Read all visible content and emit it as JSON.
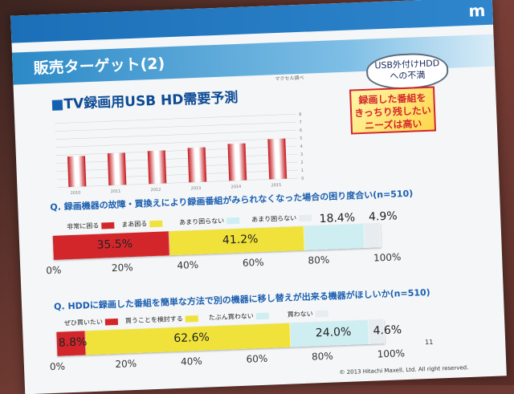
{
  "header": {
    "brand": "m"
  },
  "slide": {
    "title": "販売ターゲット(2)",
    "page": "11",
    "copyright": "© 2013 Hitachi Maxell, Ltd. All right reserved."
  },
  "bubble": {
    "line1": "USB外付けHDD",
    "line2": "への不満"
  },
  "callout": {
    "line1": "録画した番組を",
    "line2": "きっちり残したい",
    "line3": "ニーズは高い"
  },
  "colors": {
    "red": "#d3262b",
    "yellow": "#f0e23a",
    "lightblue": "#cfeef2",
    "grey": "#e6ecef"
  },
  "chart_data": [
    {
      "type": "bar",
      "title": "TV録画用USB HD需要予測",
      "unit_label": "マクセル調べ",
      "categories": [
        "2010",
        "2011",
        "2012",
        "2013",
        "2014",
        "2015"
      ],
      "values": [
        3.8,
        4.0,
        4.1,
        4.3,
        4.6,
        5.0
      ],
      "ylim": [
        0,
        8
      ],
      "y_ticks": [
        "0",
        "1",
        "2",
        "3",
        "4",
        "5",
        "6",
        "7",
        "8"
      ]
    },
    {
      "type": "bar",
      "title": "Q. 録画機器の故障・買換えにより録画番組がみられなくなった場合の困り度合い(n=510)",
      "categories": [
        "非常に困る",
        "まあ困る",
        "あまり困らない",
        "あまり困らない"
      ],
      "values": [
        35.5,
        41.2,
        18.4,
        4.9
      ],
      "value_labels": [
        "35.5%",
        "41.2%",
        "18.4%",
        "4.9%"
      ],
      "x_ticks": [
        "0%",
        "20%",
        "40%",
        "60%",
        "80%",
        "100%"
      ],
      "ylim": [
        0,
        100
      ]
    },
    {
      "type": "bar",
      "title": "Q. HDDに録画した番組を簡単な方法で別の機器に移し替えが出来る機器がほしいか(n=510)",
      "categories": [
        "ぜひ買いたい",
        "買うことを検討する",
        "たぶん買わない",
        "買わない"
      ],
      "values": [
        8.8,
        62.6,
        24.0,
        4.6
      ],
      "value_labels": [
        "8.8%",
        "62.6%",
        "24.0%",
        "4.6%"
      ],
      "x_ticks": [
        "0%",
        "20%",
        "40%",
        "60%",
        "80%",
        "100%"
      ],
      "ylim": [
        0,
        100
      ]
    }
  ]
}
